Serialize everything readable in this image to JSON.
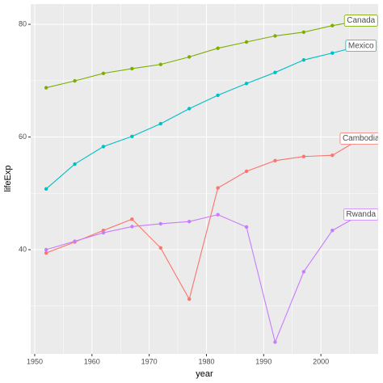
{
  "chart_data": {
    "type": "line",
    "x_label": "year",
    "y_label": "lifeExp",
    "x": [
      1952,
      1957,
      1962,
      1967,
      1972,
      1977,
      1982,
      1987,
      1992,
      1997,
      2002,
      2007
    ],
    "series": [
      {
        "name": "Cambodia",
        "color": "#F8766D",
        "values": [
          39.417,
          41.366,
          43.415,
          45.415,
          40.317,
          31.22,
          50.957,
          53.914,
          55.803,
          56.534,
          56.752,
          59.723
        ]
      },
      {
        "name": "Canada",
        "color": "#7CAE00",
        "values": [
          68.75,
          69.96,
          71.3,
          72.13,
          72.88,
          74.21,
          75.76,
          76.86,
          77.95,
          78.61,
          79.77,
          80.653
        ]
      },
      {
        "name": "Mexico",
        "color": "#00BFC4",
        "values": [
          50.789,
          55.19,
          58.299,
          60.11,
          62.361,
          65.032,
          67.405,
          69.498,
          71.455,
          73.67,
          74.902,
          76.195
        ]
      },
      {
        "name": "Rwanda",
        "color": "#C77CFF",
        "values": [
          40.0,
          41.5,
          43.0,
          44.1,
          44.6,
          45.0,
          46.218,
          44.02,
          23.599,
          36.087,
          43.413,
          46.242
        ]
      }
    ],
    "xlim": [
      1949.3,
      2010
    ],
    "xticks": [
      1950,
      1960,
      1970,
      1980,
      1990,
      2000
    ],
    "ylim": [
      21.5,
      83.6
    ],
    "yticks": [
      40,
      60,
      80
    ],
    "grid": true
  }
}
